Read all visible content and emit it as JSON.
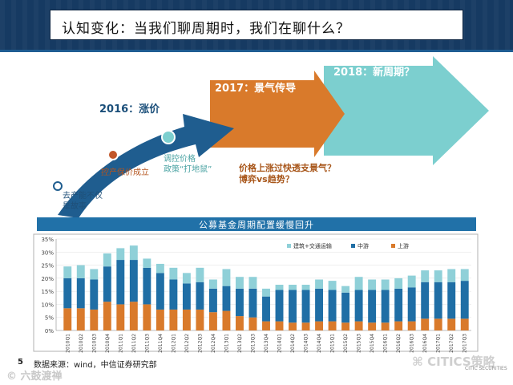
{
  "header": {
    "title": "认知变化：当我们聊周期时，我们在聊什么？"
  },
  "timeline": {
    "y2016": "2016：涨价",
    "y2017": "2017：景气传导",
    "y2018": "2018：新周期？",
    "note1": [
      "去产能不仅",
      "是故事"
    ],
    "note2": "控产保价成立",
    "note3": [
      "调控价格",
      "政策“打地鼠”"
    ],
    "question": [
      "价格上涨过快透支景气？",
      "博弈vs趋势？"
    ],
    "colors": {
      "blue": "#1f5d8f",
      "orange": "#d97a2b",
      "teal": "#7ccfcf"
    }
  },
  "chart_data": {
    "type": "bar",
    "title": "公募基金周期配置缓慢回升",
    "categories": [
      "2010Q1",
      "2010Q2",
      "2010Q3",
      "2010Q4",
      "2011Q1",
      "2011Q2",
      "2011Q3",
      "2011Q4",
      "2012Q1",
      "2012Q2",
      "2012Q3",
      "2012Q4",
      "2013Q1",
      "2013Q2",
      "2013Q3",
      "2013Q4",
      "2014Q1",
      "2014Q2",
      "2014Q3",
      "2014Q4",
      "2015Q1",
      "2015Q2",
      "2015Q3",
      "2015Q4",
      "2016Q1",
      "2016Q2",
      "2016Q3",
      "2016Q4",
      "2017Q1",
      "2017Q2",
      "2017Q3"
    ],
    "series": [
      {
        "name": "上游",
        "color": "#d97a2b",
        "values": [
          8.5,
          8.5,
          8.0,
          11.0,
          10.0,
          11.0,
          10.0,
          8.0,
          8.0,
          8.0,
          8.0,
          7.0,
          7.5,
          5.5,
          5.0,
          3.5,
          3.5,
          3.0,
          3.0,
          3.5,
          3.5,
          3.0,
          3.5,
          3.0,
          3.0,
          3.5,
          3.5,
          4.5,
          4.5,
          4.5,
          4.5
        ]
      },
      {
        "name": "中游",
        "color": "#1f6ea5",
        "values": [
          11.5,
          11.5,
          11.5,
          13.5,
          17.0,
          16.0,
          14.0,
          14.0,
          11.5,
          10.0,
          10.5,
          9.0,
          9.5,
          10.5,
          11.0,
          9.5,
          12.0,
          12.5,
          12.5,
          12.5,
          12.0,
          11.5,
          12.0,
          12.5,
          12.5,
          12.5,
          13.0,
          14.0,
          14.0,
          14.0,
          14.5
        ]
      },
      {
        "name": "建筑+交通运输",
        "color": "#8fd0d8",
        "values": [
          4.5,
          5.0,
          4.0,
          5.0,
          4.5,
          5.5,
          3.5,
          3.5,
          4.5,
          4.0,
          5.5,
          3.5,
          6.5,
          4.5,
          4.5,
          3.0,
          2.0,
          2.0,
          2.0,
          3.5,
          3.5,
          2.5,
          5.0,
          4.0,
          4.0,
          4.0,
          4.5,
          4.5,
          4.5,
          5.0,
          4.5
        ]
      }
    ],
    "yticks": [
      "0%",
      "5%",
      "10%",
      "15%",
      "20%",
      "25%",
      "30%",
      "35%"
    ],
    "ylim": [
      0,
      35
    ]
  },
  "source": "数据来源：wind，中信证券研究部",
  "page_number": "5",
  "watermark_left": "© 六鼓渡禅",
  "watermark_right": "CITICS策略",
  "citic_sub": "CITIC SECURITIES"
}
